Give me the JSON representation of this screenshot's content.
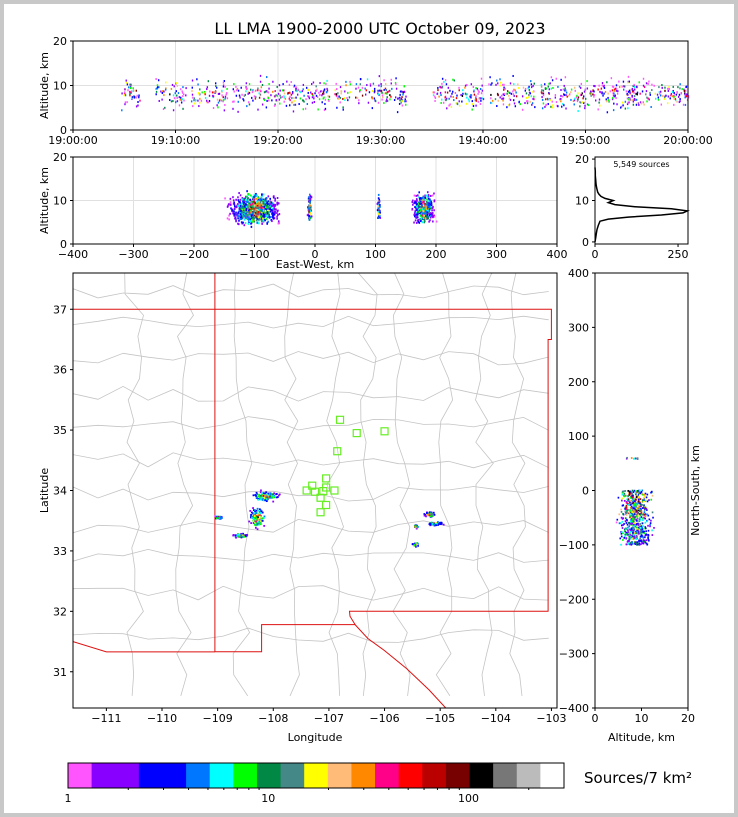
{
  "chart_data": {
    "title": "LL LMA 1900-2000 UTC October 09, 2023",
    "panels": [
      {
        "id": "time_height",
        "type": "scatter",
        "xlabel": "",
        "ylabel": "Altitude, km",
        "x_ticks": [
          "19:00:00",
          "19:10:00",
          "19:20:00",
          "19:30:00",
          "19:40:00",
          "19:50:00",
          "20:00:00"
        ],
        "xlim_minutes": [
          0,
          60
        ],
        "ylim": [
          0,
          20
        ],
        "y_ticks": [
          0,
          10,
          20
        ],
        "grid": true,
        "activity_clusters_minutes": [
          [
            4.5,
            6.5
          ],
          [
            8,
            9
          ],
          [
            9.3,
            11
          ],
          [
            11.5,
            15
          ],
          [
            15.5,
            25
          ],
          [
            25.5,
            27
          ],
          [
            27.5,
            32.5
          ],
          [
            35,
            40
          ],
          [
            40.5,
            45
          ],
          [
            45.5,
            48
          ],
          [
            47.5,
            55
          ],
          [
            54,
            60
          ]
        ],
        "altitude_center_km": 8,
        "altitude_spread_km": 5
      },
      {
        "id": "ew_height",
        "type": "scatter",
        "xlabel": "East-West, km",
        "ylabel": "Altitude, km",
        "xlim": [
          -400,
          400
        ],
        "x_ticks": [
          -400,
          -300,
          -200,
          -100,
          0,
          100,
          200,
          300,
          400
        ],
        "ylim": [
          0,
          20
        ],
        "y_ticks": [
          0,
          10,
          20
        ],
        "grid": true,
        "clusters": [
          {
            "x_range": [
              -180,
              -60
            ],
            "alt_range": [
              0.5,
              18
            ],
            "center": -100
          },
          {
            "x_range": [
              -15,
              -5
            ],
            "alt_range": [
              5,
              12
            ],
            "center": -10
          },
          {
            "x_range": [
              100,
              108
            ],
            "alt_range": [
              6,
              13
            ],
            "center": 104
          },
          {
            "x_range": [
              150,
              200
            ],
            "alt_range": [
              3,
              19
            ],
            "center": 178
          }
        ]
      },
      {
        "id": "alt_histogram",
        "type": "line",
        "annotation": "5,549 sources",
        "xlim": [
          0,
          280
        ],
        "x_ticks": [
          0,
          250
        ],
        "ylim": [
          0,
          20
        ],
        "y_ticks": [
          0,
          10,
          20
        ],
        "profile_alt_km": [
          0,
          1,
          2,
          3,
          4,
          5,
          5.5,
          6,
          6.5,
          7,
          7.5,
          8,
          8.5,
          9,
          9.5,
          10,
          10.5,
          11,
          11.5,
          12,
          13,
          14,
          15,
          16,
          17,
          18
        ],
        "profile_counts": [
          0,
          2,
          4,
          6,
          10,
          15,
          40,
          100,
          200,
          265,
          278,
          230,
          120,
          60,
          40,
          55,
          30,
          18,
          12,
          8,
          5,
          3,
          2,
          1,
          1,
          0
        ]
      },
      {
        "id": "plan_view",
        "type": "scatter",
        "xlabel": "Longitude",
        "ylabel": "Latitude",
        "xlim": [
          -111.6,
          -102.9
        ],
        "ylim": [
          30.4,
          37.6
        ],
        "x_ticks": [
          -111,
          -110,
          -109,
          -108,
          -107,
          -106,
          -105,
          -104,
          -103
        ],
        "y_ticks": [
          31,
          32,
          33,
          34,
          35,
          36,
          37
        ],
        "source_clusters": [
          {
            "lon": -108.15,
            "lat": 33.9,
            "spread_lon": 0.35,
            "spread_lat": 0.12
          },
          {
            "lon": -108.3,
            "lat": 33.55,
            "spread_lon": 0.2,
            "spread_lat": 0.25
          },
          {
            "lon": -108.6,
            "lat": 33.25,
            "spread_lon": 0.2,
            "spread_lat": 0.05
          },
          {
            "lon": -105.2,
            "lat": 33.6,
            "spread_lon": 0.15,
            "spread_lat": 0.06
          },
          {
            "lon": -105.1,
            "lat": 33.45,
            "spread_lon": 0.2,
            "spread_lat": 0.05
          },
          {
            "lon": -105.45,
            "lat": 33.1,
            "spread_lon": 0.08,
            "spread_lat": 0.05
          },
          {
            "lon": -105.45,
            "lat": 33.4,
            "spread_lon": 0.05,
            "spread_lat": 0.04
          },
          {
            "lon": -109.0,
            "lat": 33.55,
            "spread_lon": 0.1,
            "spread_lat": 0.04
          }
        ],
        "stations": [
          {
            "lon": -106.8,
            "lat": 35.17
          },
          {
            "lon": -106.5,
            "lat": 34.95
          },
          {
            "lon": -106.0,
            "lat": 34.98
          },
          {
            "lon": -106.85,
            "lat": 34.65
          },
          {
            "lon": -107.05,
            "lat": 34.2
          },
          {
            "lon": -107.3,
            "lat": 34.08
          },
          {
            "lon": -107.05,
            "lat": 34.05
          },
          {
            "lon": -107.4,
            "lat": 34.0
          },
          {
            "lon": -107.25,
            "lat": 33.98
          },
          {
            "lon": -107.1,
            "lat": 33.99
          },
          {
            "lon": -106.9,
            "lat": 34.0
          },
          {
            "lon": -107.15,
            "lat": 33.88
          },
          {
            "lon": -107.05,
            "lat": 33.76
          },
          {
            "lon": -107.15,
            "lat": 33.64
          }
        ]
      },
      {
        "id": "ns_height",
        "type": "scatter",
        "xlabel": "Altitude, km",
        "ylabel": "North-South, km",
        "xlim": [
          0,
          20
        ],
        "x_ticks": [
          0,
          10,
          20
        ],
        "ylim": [
          -400,
          400
        ],
        "y_ticks": [
          -400,
          -300,
          -200,
          -100,
          0,
          100,
          200,
          300,
          400
        ],
        "clusters": [
          {
            "ns_range": [
              -100,
              0
            ],
            "alt_range": [
              0.5,
              19
            ]
          },
          {
            "ns_range": [
              58,
              60
            ],
            "alt_range": [
              6,
              9
            ]
          }
        ]
      }
    ],
    "colorbar": {
      "label": "Sources/7 km²",
      "tick_labels": [
        "1",
        "10",
        "100"
      ],
      "scale": "log",
      "colors": [
        "#ff55ff",
        "#8800ff",
        "#8800ff",
        "#0000ff",
        "#0000ff",
        "#0077ff",
        "#00ffff",
        "#00ff00",
        "#008844",
        "#448888",
        "#ffff00",
        "#ffbb77",
        "#ff8800",
        "#ff0088",
        "#ff0000",
        "#bb0000",
        "#770000",
        "#000000",
        "#777777",
        "#bbbbbb",
        "#ffffff"
      ]
    }
  }
}
